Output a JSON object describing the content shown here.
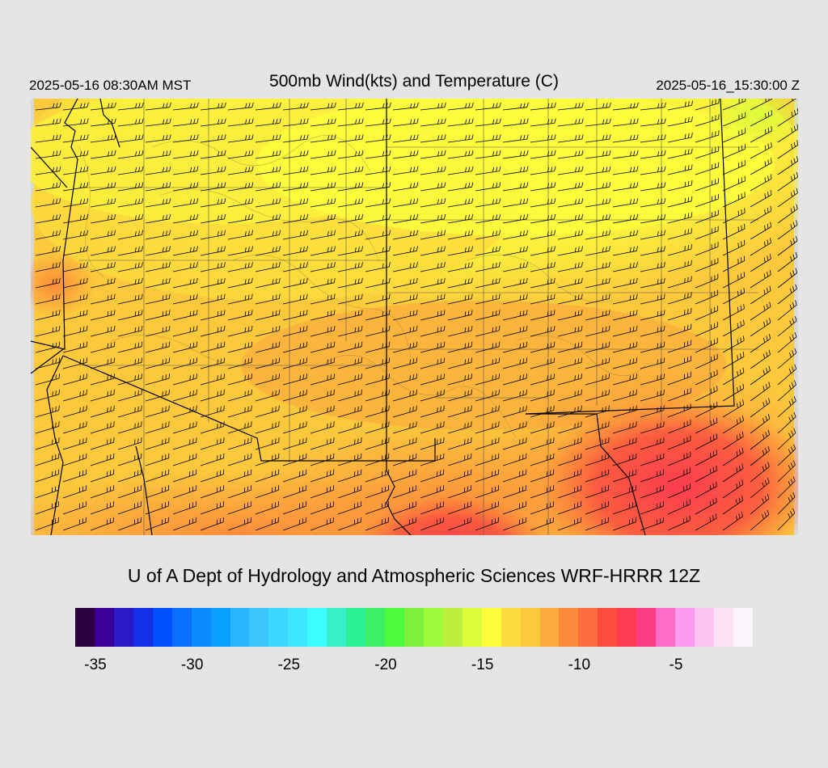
{
  "header": {
    "local_time": "2025-05-16 08:30AM MST",
    "title": "500mb Wind(kts) and Temperature (C)",
    "utc_time": "2025-05-16_15:30:00 Z"
  },
  "credit": "U of A Dept of Hydrology and Atmospheric Sciences WRF-HRRR 12Z",
  "map": {
    "field": "temperature",
    "units": "C",
    "overlays": [
      "wind-barbs",
      "state-borders",
      "county-borders",
      "terrain-contours"
    ],
    "background_color": "#d9d9d9"
  },
  "colorbar": {
    "colors": [
      "#2d0040",
      "#3c0096",
      "#2a19c8",
      "#1530e6",
      "#0050ff",
      "#0a6eff",
      "#0a8cff",
      "#0aa0ff",
      "#28b4ff",
      "#3cc8ff",
      "#3cd8ff",
      "#3ce6ff",
      "#3cfcff",
      "#37f0c8",
      "#2cf096",
      "#3cf064",
      "#4cfc3c",
      "#7cf03c",
      "#9cfc3c",
      "#bcf03c",
      "#dcfc3c",
      "#fcfc3c",
      "#fcdc3c",
      "#fcc83c",
      "#fcac3c",
      "#fc8c3c",
      "#fc6c3c",
      "#fc4c3c",
      "#fc3c50",
      "#fc3c82",
      "#fc6cc8",
      "#fc9cf0",
      "#fcc4f0",
      "#fce2f4",
      "#fcf4fc"
    ],
    "ticks": [
      {
        "label": "-35",
        "value": -35
      },
      {
        "label": "-30",
        "value": -30
      },
      {
        "label": "-25",
        "value": -25
      },
      {
        "label": "-20",
        "value": -20
      },
      {
        "label": "-15",
        "value": -15
      },
      {
        "label": "-10",
        "value": -10
      },
      {
        "label": "-5",
        "value": -5
      }
    ]
  }
}
